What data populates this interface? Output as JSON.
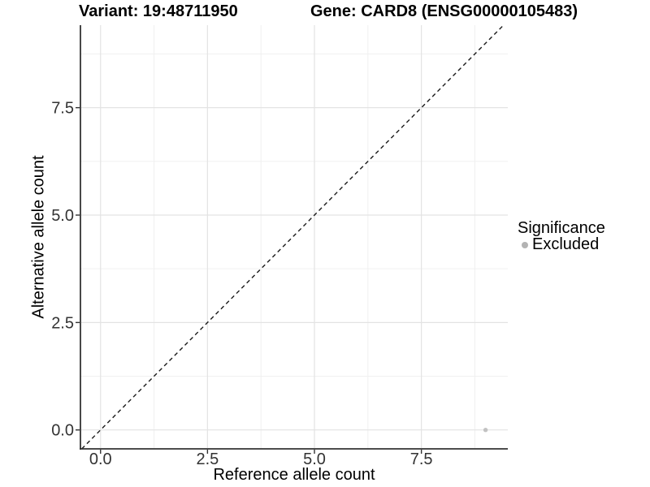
{
  "page": {
    "background": "#ffffff"
  },
  "chart_data": {
    "type": "scatter",
    "titles": {
      "left": "Variant: 19:48711950",
      "right": "Gene: CARD8 (ENSG00000105483)"
    },
    "xlabel": "Reference allele count",
    "ylabel": "Alternative allele count",
    "x_ticks": [
      0,
      2.5,
      5,
      7.5
    ],
    "y_ticks": [
      0,
      2.5,
      5,
      7.5
    ],
    "x_tick_labels": [
      "0.0",
      "2.5",
      "5.0",
      "7.5"
    ],
    "y_tick_labels": [
      "0.0",
      "2.5",
      "5.0",
      "7.5"
    ],
    "minor_ticks_x": [
      1.25,
      3.75,
      6.25,
      8.75
    ],
    "minor_ticks_y": [
      1.25,
      3.75,
      6.25,
      8.75
    ],
    "xlim": [
      -0.47,
      9.52
    ],
    "ylim": [
      -0.44,
      9.42
    ],
    "grid": "major+minor",
    "points": [
      {
        "x": 9,
        "y": 0,
        "significance": "Excluded"
      }
    ],
    "reference_line": {
      "slope": 1,
      "intercept": 0,
      "style": "dashed"
    },
    "legend": {
      "title": "Significance",
      "position": "right",
      "items": [
        {
          "label": "Excluded",
          "color": "#b3b3b3"
        }
      ]
    },
    "colors": {
      "point": "#c2c2c2",
      "grid_major": "#e3e3e3",
      "grid_minor": "#f0f0f0",
      "axis_line": "#333333",
      "tick_mark": "#333333",
      "tick_label": "#333333",
      "dashed_line": "#1a1a1a",
      "background": "#ffffff"
    }
  }
}
